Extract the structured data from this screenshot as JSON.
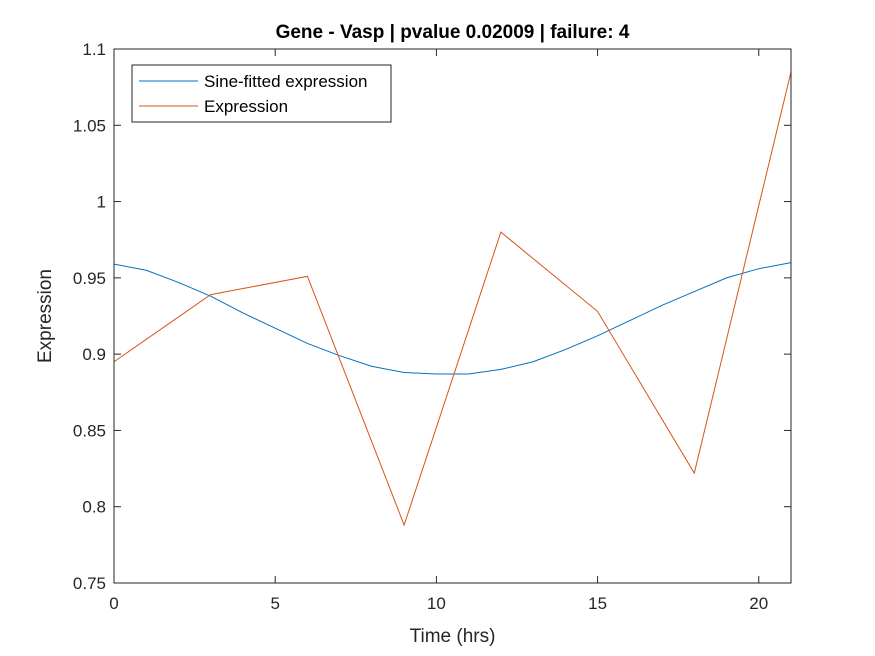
{
  "chart_data": {
    "type": "line",
    "title": "Gene - Vasp | pvalue 0.02009 | failure: 4",
    "xlabel": "Time (hrs)",
    "ylabel": "Expression",
    "xlim": [
      0,
      21
    ],
    "ylim": [
      0.75,
      1.1
    ],
    "xticks": [
      0,
      5,
      10,
      15,
      20
    ],
    "xtick_labels": [
      "0",
      "5",
      "10",
      "15",
      "20"
    ],
    "yticks": [
      0.75,
      0.8,
      0.85,
      0.9,
      0.95,
      1.0,
      1.05,
      1.1
    ],
    "ytick_labels": [
      "0.75",
      "0.8",
      "0.85",
      "0.9",
      "0.95",
      "1",
      "1.05",
      "1.1"
    ],
    "grid": false,
    "legend_position": "top-left",
    "series": [
      {
        "name": "Sine-fitted expression",
        "color": "#0072BD",
        "x": [
          0,
          1,
          2,
          3,
          4,
          5,
          6,
          7,
          8,
          9,
          10,
          11,
          12,
          13,
          14,
          15,
          16,
          17,
          18,
          19,
          20,
          21
        ],
        "y": [
          0.959,
          0.955,
          0.947,
          0.938,
          0.927,
          0.917,
          0.907,
          0.899,
          0.892,
          0.888,
          0.887,
          0.887,
          0.89,
          0.895,
          0.903,
          0.912,
          0.922,
          0.932,
          0.941,
          0.95,
          0.956,
          0.96
        ]
      },
      {
        "name": "Expression",
        "color": "#D95319",
        "x": [
          0,
          3,
          6,
          9,
          12,
          15,
          18,
          21
        ],
        "y": [
          0.895,
          0.939,
          0.951,
          0.788,
          0.98,
          0.928,
          0.822,
          1.085
        ]
      }
    ]
  }
}
